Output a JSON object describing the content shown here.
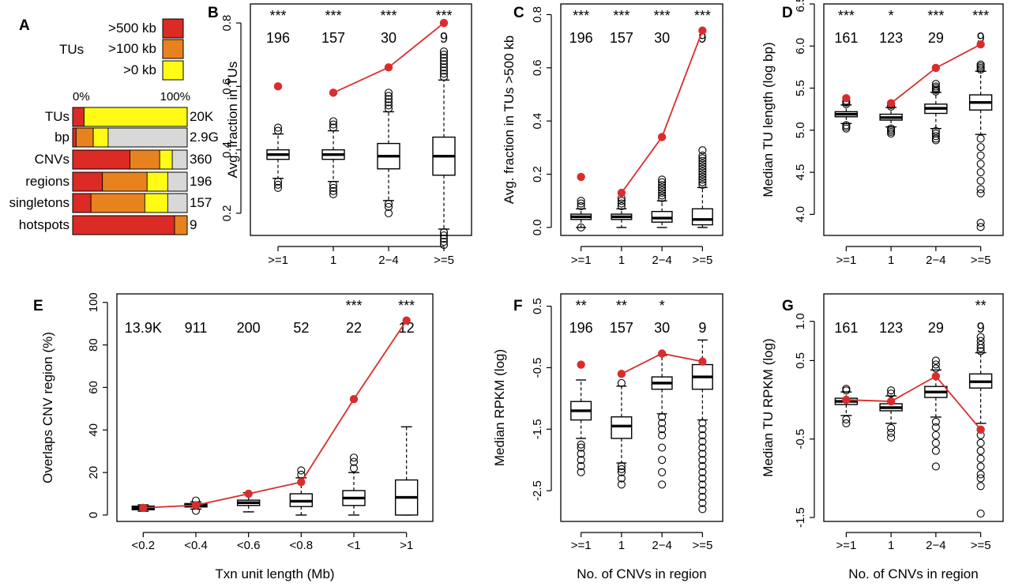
{
  "colors": {
    "red": "#dc2a24",
    "orange": "#e8821e",
    "yellow": "#fffb14",
    "gray": "#d8d8d8",
    "observed": "#d92d2d"
  },
  "panelA": {
    "label": "A",
    "legend_group": "TUs",
    "legend": [
      {
        "label": ">500 kb",
        "color": "#dc2a24"
      },
      {
        "label": ">100 kb",
        "color": "#e8821e"
      },
      {
        "label": ">0 kb",
        "color": "#fffb14"
      }
    ],
    "axis_labels": [
      "0%",
      "100%"
    ],
    "rows": [
      {
        "name": "TUs",
        "count": "20K",
        "segments": [
          0.1,
          0.0,
          0.9,
          0.0
        ]
      },
      {
        "name": "bp",
        "count": "2.9G",
        "segments": [
          0.03,
          0.15,
          0.13,
          0.69
        ]
      },
      {
        "name": "CNVs",
        "count": "360",
        "segments": [
          0.5,
          0.26,
          0.11,
          0.13
        ]
      },
      {
        "name": "regions",
        "count": "196",
        "segments": [
          0.26,
          0.39,
          0.18,
          0.17
        ]
      },
      {
        "name": "singletons",
        "count": "157",
        "segments": [
          0.16,
          0.47,
          0.2,
          0.17
        ]
      },
      {
        "name": "hotspots",
        "count": "9",
        "segments": [
          0.89,
          0.11,
          0.0,
          0.0
        ]
      }
    ]
  },
  "chart_data": [
    {
      "panel": "B",
      "type": "box",
      "categories": [
        ">=1",
        "1",
        "2−4",
        ">=5"
      ],
      "ylabel": "Avg. fraction in TUs",
      "ylim": [
        0.13,
        0.86
      ],
      "yticks": [
        "0.2",
        "0.4",
        "0.6",
        "0.8"
      ],
      "ytick_values": [
        0.2,
        0.4,
        0.6,
        0.8
      ],
      "significance": [
        "***",
        "***",
        "***",
        "***"
      ],
      "counts": [
        "196",
        "157",
        "30",
        "9"
      ],
      "boxes": [
        {
          "q1": 0.37,
          "med": 0.385,
          "q3": 0.4,
          "wlo": 0.31,
          "whi": 0.45,
          "outliers": [
            0.28,
            0.29,
            0.3,
            0.46,
            0.47
          ]
        },
        {
          "q1": 0.37,
          "med": 0.385,
          "q3": 0.4,
          "wlo": 0.3,
          "whi": 0.46,
          "outliers": [
            0.26,
            0.27,
            0.28,
            0.29,
            0.47,
            0.48,
            0.49
          ]
        },
        {
          "q1": 0.34,
          "med": 0.38,
          "q3": 0.42,
          "wlo": 0.24,
          "whi": 0.52,
          "outliers": [
            0.2,
            0.22,
            0.23,
            0.53,
            0.54,
            0.55,
            0.56,
            0.57,
            0.58
          ]
        },
        {
          "q1": 0.32,
          "med": 0.38,
          "q3": 0.44,
          "wlo": 0.15,
          "whi": 0.62,
          "outliers": [
            0.1,
            0.11,
            0.12,
            0.13,
            0.14,
            0.63,
            0.64,
            0.65,
            0.66,
            0.67,
            0.68,
            0.69,
            0.7,
            0.71
          ]
        }
      ],
      "observed": [
        0.6,
        0.58,
        0.66,
        0.8
      ],
      "observed_line_from": 1
    },
    {
      "panel": "C",
      "type": "box",
      "categories": [
        ">=1",
        "1",
        "2−4",
        ">=5"
      ],
      "ylabel": "Avg. fraction in TUs >500 kb",
      "ylim": [
        -0.03,
        0.84
      ],
      "yticks": [
        "0.0",
        "0.2",
        "0.4",
        "0.6",
        "0.8"
      ],
      "ytick_values": [
        0.0,
        0.2,
        0.4,
        0.6,
        0.8
      ],
      "significance": [
        "***",
        "***",
        "***",
        "***"
      ],
      "counts": [
        "196",
        "157",
        "30",
        "9"
      ],
      "boxes": [
        {
          "q1": 0.03,
          "med": 0.04,
          "q3": 0.05,
          "wlo": 0.0,
          "whi": 0.07,
          "outliers": [
            0.0,
            0.08,
            0.09,
            0.1
          ]
        },
        {
          "q1": 0.03,
          "med": 0.04,
          "q3": 0.05,
          "wlo": 0.0,
          "whi": 0.07,
          "outliers": [
            0.08,
            0.09,
            0.1,
            0.11
          ]
        },
        {
          "q1": 0.02,
          "med": 0.035,
          "q3": 0.06,
          "wlo": 0.0,
          "whi": 0.1,
          "outliers": [
            0.11,
            0.12,
            0.13,
            0.14,
            0.15,
            0.16,
            0.17,
            0.18
          ]
        },
        {
          "q1": 0.01,
          "med": 0.03,
          "q3": 0.07,
          "wlo": 0.0,
          "whi": 0.15,
          "outliers": [
            0.16,
            0.17,
            0.18,
            0.19,
            0.2,
            0.21,
            0.22,
            0.23,
            0.24,
            0.25,
            0.26,
            0.27,
            0.29
          ]
        }
      ],
      "observed": [
        0.19,
        0.13,
        0.34,
        0.74
      ],
      "observed_line_from": 1
    },
    {
      "panel": "D",
      "type": "box",
      "categories": [
        ">=1",
        "1",
        "2−4",
        ">=5"
      ],
      "ylabel": "Median TU length (log bp)",
      "ylim": [
        3.75,
        6.5
      ],
      "yticks": [
        "4.0",
        "4.5",
        "5.0",
        "5.5",
        "6.0",
        "6.5"
      ],
      "ytick_values": [
        4.0,
        4.5,
        5.0,
        5.5,
        6.0,
        6.5
      ],
      "significance": [
        "***",
        "*",
        "***",
        "***"
      ],
      "counts": [
        "161",
        "123",
        "29",
        "9"
      ],
      "boxes": [
        {
          "q1": 5.16,
          "med": 5.19,
          "q3": 5.22,
          "wlo": 5.08,
          "whi": 5.3,
          "outliers": [
            5.02,
            5.04,
            5.06,
            5.31,
            5.33,
            5.35
          ]
        },
        {
          "q1": 5.12,
          "med": 5.15,
          "q3": 5.19,
          "wlo": 5.04,
          "whi": 5.27,
          "outliers": [
            4.96,
            4.98,
            5.0,
            5.02,
            5.28,
            5.3,
            5.32
          ]
        },
        {
          "q1": 5.2,
          "med": 5.26,
          "q3": 5.31,
          "wlo": 5.02,
          "whi": 5.45,
          "outliers": [
            4.88,
            4.9,
            4.93,
            4.96,
            4.99,
            5.46,
            5.48,
            5.5,
            5.52,
            5.55
          ]
        },
        {
          "q1": 5.24,
          "med": 5.33,
          "q3": 5.42,
          "wlo": 4.95,
          "whi": 5.7,
          "outliers": [
            3.85,
            3.9,
            4.25,
            4.3,
            4.4,
            4.5,
            4.6,
            4.7,
            4.8,
            4.9,
            5.72,
            5.74,
            5.76,
            5.78
          ]
        }
      ],
      "observed": [
        5.38,
        5.32,
        5.74,
        6.02
      ],
      "observed_line_from": 1
    },
    {
      "panel": "E",
      "type": "box",
      "categories": [
        "<0.2",
        "<0.4",
        "<0.6",
        "<0.8",
        "<1",
        ">1"
      ],
      "xlabel": "Txn unit length (Mb)",
      "ylabel": "Overlaps CNV region (%)",
      "ylim": [
        -3,
        104
      ],
      "yticks": [
        "0",
        "20",
        "40",
        "60",
        "80",
        "100"
      ],
      "ytick_values": [
        0,
        20,
        40,
        60,
        80,
        100
      ],
      "significance": [
        "",
        "",
        "",
        "",
        "***",
        "***"
      ],
      "counts": [
        "13.9K",
        "911",
        "200",
        "52",
        "22",
        "12"
      ],
      "boxes": [
        {
          "q1": 2.5,
          "med": 3.4,
          "q3": 4.2,
          "wlo": 1.8,
          "whi": 4.8,
          "outliers": []
        },
        {
          "q1": 3.8,
          "med": 4.6,
          "q3": 5.4,
          "wlo": 2.8,
          "whi": 6.2,
          "outliers": [
            2.0,
            6.8
          ]
        },
        {
          "q1": 4.5,
          "med": 5.8,
          "q3": 7.0,
          "wlo": 1.5,
          "whi": 10.5,
          "outliers": []
        },
        {
          "q1": 4.0,
          "med": 6.5,
          "q3": 10.0,
          "wlo": 0.0,
          "whi": 17.5,
          "outliers": [
            19.0,
            21.0
          ]
        },
        {
          "q1": 4.5,
          "med": 8.0,
          "q3": 11.5,
          "wlo": 0.0,
          "whi": 20.0,
          "outliers": [
            22.0,
            25.0,
            27.0
          ]
        },
        {
          "q1": 0.0,
          "med": 8.3,
          "q3": 16.5,
          "wlo": 0.0,
          "whi": 41.5,
          "outliers": []
        }
      ],
      "observed": [
        3.4,
        4.6,
        10.0,
        15.5,
        54.5,
        91.5
      ],
      "observed_line_from": 0
    },
    {
      "panel": "F",
      "type": "box",
      "categories": [
        ">=1",
        "1",
        "2−4",
        ">=5"
      ],
      "xlabel": "No. of CNVs in region",
      "ylabel": "Median RPKM (log)",
      "ylim": [
        -3.0,
        0.7
      ],
      "yticks": [
        "-2.5",
        "-1.5",
        "-0.5",
        "0.5"
      ],
      "ytick_values": [
        -2.5,
        -1.5,
        -0.5,
        0.5
      ],
      "significance": [
        "**",
        "**",
        "*",
        ""
      ],
      "counts": [
        "196",
        "157",
        "30",
        "9"
      ],
      "boxes": [
        {
          "q1": -1.35,
          "med": -1.2,
          "q3": -1.05,
          "wlo": -1.65,
          "whi": -0.7,
          "outliers": [
            -2.2,
            -2.1,
            -2.0,
            -1.9,
            -1.8,
            -1.75
          ]
        },
        {
          "q1": -1.65,
          "med": -1.45,
          "q3": -1.3,
          "wlo": -2.05,
          "whi": -0.8,
          "outliers": [
            -2.4,
            -2.3,
            -2.2,
            -2.15,
            -2.1,
            -0.75
          ]
        },
        {
          "q1": -0.85,
          "med": -0.75,
          "q3": -0.65,
          "wlo": -1.25,
          "whi": -0.3,
          "outliers": [
            -2.4,
            -2.2,
            -2.0,
            -1.8,
            -1.6,
            -1.5,
            -1.4,
            -1.3
          ]
        },
        {
          "q1": -0.85,
          "med": -0.65,
          "q3": -0.45,
          "wlo": -1.35,
          "whi": -0.05,
          "outliers": [
            -2.8,
            -2.7,
            -2.6,
            -2.5,
            -2.4,
            -2.3,
            -2.2,
            -2.1,
            -2.0,
            -1.9,
            -1.8,
            -1.7,
            -1.6,
            -1.5,
            -1.4
          ]
        }
      ],
      "observed": [
        -0.45,
        -0.6,
        -0.27,
        -0.4
      ],
      "observed_line_from": 1
    },
    {
      "panel": "G",
      "type": "box",
      "categories": [
        ">=1",
        "1",
        "2−4",
        ">=5"
      ],
      "xlabel": "No. of CNVs in region",
      "ylabel": "Median TU RPKM (log)",
      "ylim": [
        -1.55,
        1.35
      ],
      "yticks": [
        "-1.5",
        "-0.5",
        "0.5",
        "1.0"
      ],
      "ytick_values": [
        -1.5,
        -0.5,
        0.5,
        1.0
      ],
      "significance": [
        "",
        "",
        "",
        "**"
      ],
      "counts": [
        "161",
        "123",
        "29",
        "9"
      ],
      "boxes": [
        {
          "q1": -0.06,
          "med": -0.02,
          "q3": 0.02,
          "wlo": -0.2,
          "whi": 0.1,
          "outliers": [
            -0.3,
            -0.25,
            0.12,
            0.14
          ]
        },
        {
          "q1": -0.14,
          "med": -0.1,
          "q3": -0.05,
          "wlo": -0.3,
          "whi": 0.05,
          "outliers": [
            -0.48,
            -0.42,
            -0.36,
            0.08,
            0.12
          ]
        },
        {
          "q1": 0.03,
          "med": 0.1,
          "q3": 0.17,
          "wlo": -0.22,
          "whi": 0.38,
          "outliers": [
            -0.85,
            -0.65,
            -0.55,
            -0.45,
            -0.35,
            -0.28,
            0.4,
            0.45,
            0.5
          ]
        },
        {
          "q1": 0.15,
          "med": 0.23,
          "q3": 0.33,
          "wlo": -0.3,
          "whi": 0.6,
          "outliers": [
            -1.45,
            -1.1,
            -1.0,
            -0.95,
            -0.85,
            -0.75,
            -0.65,
            -0.55,
            -0.45,
            -0.38,
            0.62,
            0.66,
            0.7,
            0.75,
            0.8
          ]
        }
      ],
      "observed": [
        0.0,
        -0.02,
        0.3,
        -0.38
      ],
      "observed_line_from": 0
    }
  ]
}
